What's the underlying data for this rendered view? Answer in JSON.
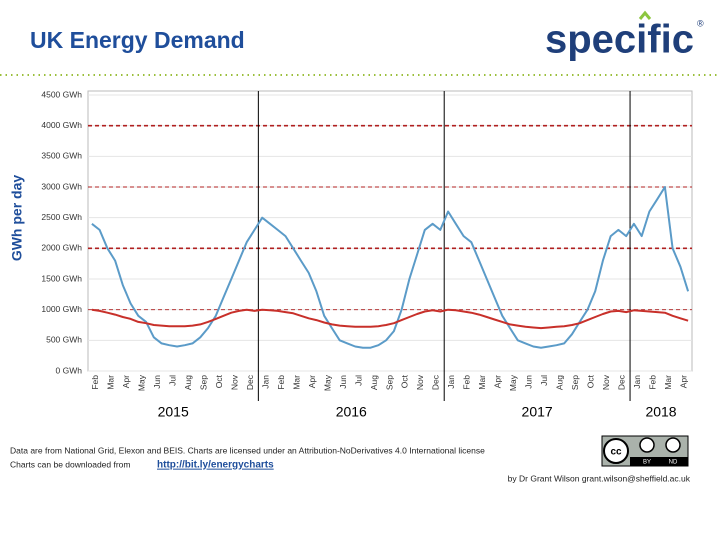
{
  "header": {
    "title": "UK Energy Demand",
    "logo": "specific",
    "logo_mark": "®"
  },
  "chart_data": {
    "type": "line",
    "ylabel": "GWh per day",
    "categories": [
      "Feb",
      null,
      "Mar",
      null,
      "Apr",
      null,
      "May",
      null,
      "Jun",
      null,
      "Jul",
      null,
      "Aug",
      null,
      "Sep",
      null,
      "Oct",
      null,
      "Nov",
      null,
      "Dec",
      null,
      "Jan",
      null,
      "Feb",
      null,
      "Mar",
      null,
      "Apr",
      null,
      "May",
      null,
      "Jun",
      null,
      "Jul",
      null,
      "Aug",
      null,
      "Sep",
      null,
      "Oct",
      null,
      "Nov",
      null,
      "Dec",
      null,
      "Jan",
      null,
      "Feb",
      null,
      "Mar",
      null,
      "Apr",
      null,
      "May",
      null,
      "Jun",
      null,
      "Jul",
      null,
      "Aug",
      null,
      "Sep",
      null,
      "Oct",
      null,
      "Nov",
      null,
      "Dec",
      null,
      "Jan",
      null,
      "Feb",
      null,
      "Mar",
      null,
      "Apr",
      null
    ],
    "year_labels": [
      "2015",
      "2016",
      "2017",
      "2018"
    ],
    "series": [
      {
        "color": "#5b9bc8",
        "values": [
          2400,
          2300,
          2000,
          1800,
          1400,
          1100,
          900,
          800,
          550,
          450,
          420,
          400,
          420,
          450,
          550,
          700,
          900,
          1200,
          1500,
          1800,
          2100,
          2300,
          2500,
          2400,
          2300,
          2200,
          2000,
          1800,
          1600,
          1300,
          900,
          700,
          500,
          450,
          400,
          380,
          380,
          420,
          500,
          650,
          1000,
          1500,
          1900,
          2300,
          2400,
          2300,
          2600,
          2400,
          2200,
          2100,
          1800,
          1500,
          1200,
          900,
          700,
          500,
          450,
          400,
          380,
          400,
          420,
          450,
          600,
          800,
          1000,
          1300,
          1800,
          2200,
          2300,
          2200,
          2400,
          2200,
          2600,
          2800,
          3000,
          2000,
          1700,
          1300
        ]
      },
      {
        "color": "#c8302a",
        "values": [
          1000,
          980,
          950,
          920,
          880,
          850,
          800,
          780,
          750,
          740,
          730,
          730,
          730,
          740,
          760,
          800,
          850,
          900,
          950,
          980,
          1000,
          980,
          1000,
          990,
          980,
          960,
          940,
          900,
          860,
          830,
          790,
          760,
          740,
          730,
          720,
          720,
          720,
          730,
          750,
          780,
          830,
          880,
          930,
          970,
          990,
          970,
          1000,
          990,
          970,
          950,
          920,
          880,
          840,
          800,
          760,
          740,
          720,
          710,
          700,
          710,
          720,
          730,
          750,
          780,
          830,
          880,
          930,
          970,
          980,
          960,
          990,
          980,
          970,
          960,
          950,
          900,
          860,
          820
        ]
      }
    ],
    "ylim": [
      0,
      4500
    ],
    "yticks": [
      {
        "value": 0,
        "label": "0 GWh"
      },
      {
        "value": 500,
        "label": "500 GWh"
      },
      {
        "value": 1000,
        "label": "1000 GWh"
      },
      {
        "value": 1500,
        "label": "1500 GWh"
      },
      {
        "value": 2000,
        "label": "2000 GWh"
      },
      {
        "value": 2500,
        "label": "2500 GWh"
      },
      {
        "value": 3000,
        "label": "3000 GWh"
      },
      {
        "value": 3500,
        "label": "3500 GWh"
      },
      {
        "value": 4000,
        "label": "4000 GWh"
      },
      {
        "value": 4500,
        "label": "4500 GWh"
      }
    ],
    "dashed_lines": [
      1000,
      2000,
      3000,
      4000
    ]
  },
  "footer": {
    "line1": "Data are from National Grid, Elexon and BEIS. Charts are licensed under an Attribution-NoDerivatives 4.0 International license",
    "line2": "Charts can be downloaded from",
    "link": "http://bit.ly/energycharts",
    "byline": "by Dr Grant Wilson grant.wilson@sheffield.ac.uk",
    "badge": [
      "cc",
      "BY",
      "ND"
    ]
  }
}
